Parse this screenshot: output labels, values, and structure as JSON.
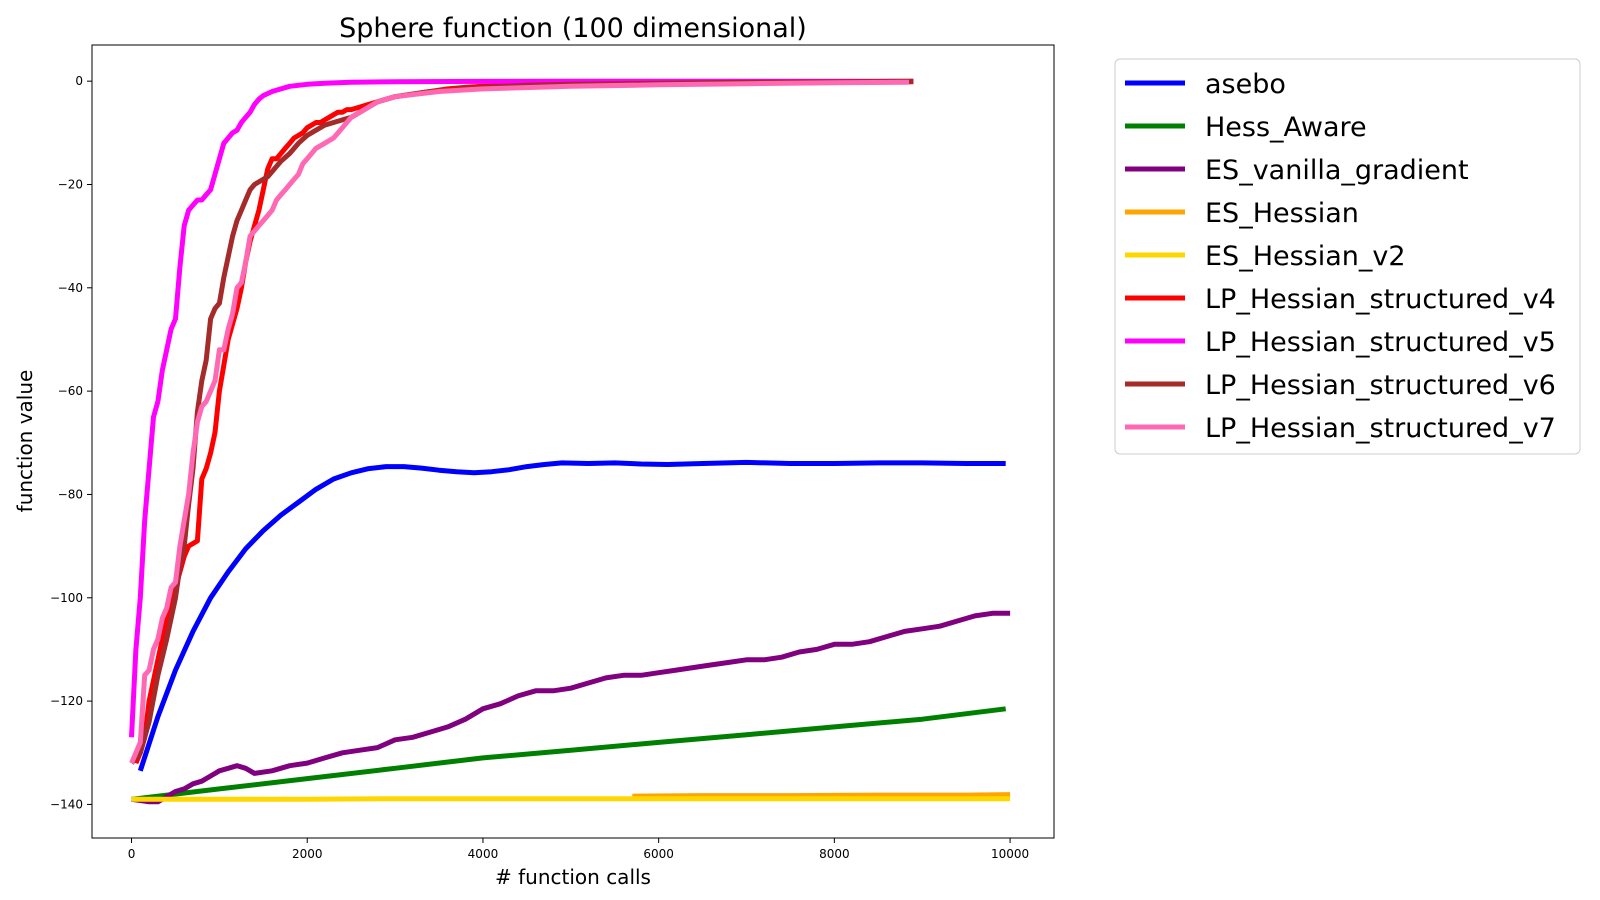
{
  "chart_data": {
    "type": "line",
    "title": "Sphere function (100 dimensional)",
    "xlabel": "# function calls",
    "ylabel": "function value",
    "xlim": [
      -450,
      10500
    ],
    "ylim": [
      -146.5,
      7
    ],
    "xticks": [
      0,
      2000,
      4000,
      6000,
      8000,
      10000
    ],
    "xtick_labels": [
      "0",
      "2000",
      "4000",
      "6000",
      "8000",
      "10000"
    ],
    "yticks": [
      0,
      -20,
      -40,
      -60,
      -80,
      -100,
      -120,
      -140
    ],
    "ytick_labels": [
      "0",
      "−20",
      "−40",
      "−60",
      "−80",
      "−100",
      "−120",
      "−140"
    ],
    "grid": false,
    "legend": "outside-upper-right",
    "series": [
      {
        "name": "asebo",
        "color": "#0000ff",
        "x": [
          100,
          300,
          500,
          700,
          900,
          1100,
          1300,
          1500,
          1700,
          1900,
          2100,
          2300,
          2500,
          2700,
          2900,
          3100,
          3300,
          3500,
          3700,
          3900,
          4100,
          4300,
          4500,
          4700,
          4900,
          5200,
          5500,
          5800,
          6100,
          6500,
          7000,
          7500,
          8000,
          8500,
          9000,
          9500,
          9950
        ],
        "y": [
          -133.5,
          -123,
          -114,
          -106.5,
          -100,
          -95,
          -90.5,
          -87,
          -84,
          -81.5,
          -79,
          -77,
          -75.8,
          -75,
          -74.6,
          -74.6,
          -74.9,
          -75.3,
          -75.6,
          -75.8,
          -75.6,
          -75.2,
          -74.6,
          -74.2,
          -73.9,
          -74,
          -73.9,
          -74.1,
          -74.2,
          -74,
          -73.8,
          -74,
          -74,
          -73.9,
          -73.9,
          -74,
          -74
        ]
      },
      {
        "name": "Hess_Aware",
        "color": "#008000",
        "x": [
          0,
          1000,
          2000,
          3000,
          4000,
          5000,
          6000,
          7000,
          8000,
          9000,
          9950
        ],
        "y": [
          -139,
          -137,
          -135,
          -133,
          -131,
          -129.5,
          -128,
          -126.5,
          -125,
          -123.5,
          -121.5
        ]
      },
      {
        "name": "ES_vanilla_gradient",
        "color": "#800080",
        "x": [
          0,
          200,
          300,
          400,
          500,
          600,
          700,
          800,
          900,
          1000,
          1100,
          1200,
          1300,
          1400,
          1600,
          1800,
          2000,
          2200,
          2400,
          2600,
          2800,
          3000,
          3200,
          3400,
          3600,
          3800,
          4000,
          4200,
          4400,
          4600,
          4800,
          5000,
          5200,
          5400,
          5600,
          5800,
          6000,
          6200,
          6400,
          6600,
          6800,
          7000,
          7200,
          7400,
          7600,
          7800,
          8000,
          8200,
          8400,
          8600,
          8800,
          9000,
          9200,
          9400,
          9600,
          9800,
          10000
        ],
        "y": [
          -139,
          -139.5,
          -139.5,
          -138.5,
          -137.5,
          -137,
          -136,
          -135.5,
          -134.5,
          -133.5,
          -133,
          -132.5,
          -133,
          -134,
          -133.5,
          -132.5,
          -132,
          -131,
          -130,
          -129.5,
          -129,
          -127.5,
          -127,
          -126,
          -125,
          -123.5,
          -121.5,
          -120.5,
          -119,
          -118,
          -118,
          -117.5,
          -116.5,
          -115.5,
          -115,
          -115,
          -114.5,
          -114,
          -113.5,
          -113,
          -112.5,
          -112,
          -112,
          -111.5,
          -110.5,
          -110,
          -109,
          -109,
          -108.5,
          -107.5,
          -106.5,
          -106,
          -105.5,
          -104.5,
          -103.5,
          -103,
          -103
        ]
      },
      {
        "name": "ES_Hessian",
        "color": "#ffa500",
        "x": [
          5700,
          6500,
          7500,
          8500,
          9500,
          10000
        ],
        "y": [
          -138.4,
          -138.3,
          -138.3,
          -138.2,
          -138.2,
          -138.1
        ]
      },
      {
        "name": "ES_Hessian_v2",
        "color": "#ffd700",
        "x": [
          0,
          1000,
          2000,
          3000,
          4000,
          5000,
          6000,
          7000,
          8000,
          9000,
          10000
        ],
        "y": [
          -139,
          -139,
          -139,
          -138.9,
          -138.9,
          -138.9,
          -138.9,
          -138.9,
          -138.9,
          -138.9,
          -138.9
        ]
      },
      {
        "name": "LP_Hessian_structured_v4",
        "color": "#ff0000",
        "x": [
          50,
          100,
          150,
          200,
          250,
          300,
          350,
          400,
          450,
          500,
          550,
          600,
          650,
          700,
          750,
          800,
          850,
          900,
          950,
          1000,
          1050,
          1100,
          1150,
          1200,
          1250,
          1300,
          1350,
          1400,
          1450,
          1500,
          1550,
          1600,
          1650,
          1700,
          1750,
          1800,
          1850,
          1900,
          1950,
          2000,
          2050,
          2100,
          2150,
          2200,
          2250,
          2300,
          2350,
          2400,
          2450,
          2500,
          2600,
          2700,
          2800,
          2900,
          3000,
          3200,
          3400,
          3600,
          3800,
          4000,
          5000,
          6000,
          7000,
          8000,
          8900
        ],
        "y": [
          -132,
          -130,
          -127,
          -120,
          -116,
          -112,
          -108,
          -104,
          -101,
          -98,
          -95,
          -92,
          -90,
          -89.5,
          -89,
          -77,
          -75,
          -72,
          -68,
          -60,
          -55,
          -50,
          -47,
          -44,
          -40,
          -35,
          -31,
          -28,
          -25,
          -21,
          -17,
          -15,
          -15,
          -14,
          -13,
          -12,
          -11,
          -10.5,
          -10,
          -9,
          -8.5,
          -8,
          -8,
          -7.5,
          -7,
          -6.5,
          -6,
          -6,
          -5.5,
          -5.5,
          -5,
          -4.5,
          -4,
          -3.5,
          -3,
          -2.5,
          -2,
          -1.5,
          -1.2,
          -1,
          -0.6,
          -0.4,
          -0.3,
          -0.2,
          -0.1
        ]
      },
      {
        "name": "LP_Hessian_structured_v5",
        "color": "#ff00ff",
        "x": [
          0,
          50,
          100,
          150,
          200,
          250,
          300,
          350,
          400,
          450,
          500,
          550,
          600,
          650,
          700,
          750,
          800,
          850,
          900,
          950,
          1000,
          1050,
          1100,
          1150,
          1200,
          1250,
          1300,
          1350,
          1400,
          1450,
          1500,
          1600,
          1700,
          1800,
          2000,
          2200,
          2500,
          3000,
          4000,
          5000,
          6000,
          8000,
          8900
        ],
        "y": [
          -127,
          -110,
          -100,
          -85,
          -75,
          -65,
          -62,
          -56,
          -52,
          -48,
          -46,
          -36,
          -28,
          -25,
          -24,
          -23,
          -23,
          -22,
          -21,
          -18,
          -15,
          -12,
          -11,
          -10,
          -9.5,
          -8,
          -7,
          -6,
          -4.5,
          -3.5,
          -2.8,
          -2,
          -1.5,
          -1,
          -0.6,
          -0.4,
          -0.2,
          -0.1,
          -0.05,
          0,
          0,
          0,
          0
        ]
      },
      {
        "name": "LP_Hessian_structured_v6",
        "color": "#a52a2a",
        "x": [
          0,
          100,
          200,
          300,
          400,
          500,
          550,
          600,
          650,
          700,
          750,
          800,
          850,
          900,
          950,
          1000,
          1050,
          1100,
          1150,
          1200,
          1250,
          1300,
          1350,
          1400,
          1450,
          1500,
          1550,
          1600,
          1650,
          1700,
          1800,
          1900,
          2000,
          2100,
          2200,
          2300,
          2400,
          2500,
          2600,
          2700,
          2800,
          2900,
          3000,
          3200,
          3400,
          3600,
          3800,
          4000,
          4500,
          5000,
          6000,
          7000,
          8000,
          8900
        ],
        "y": [
          -132,
          -130,
          -124,
          -115,
          -108,
          -100,
          -94,
          -90,
          -82,
          -75,
          -64,
          -58,
          -54,
          -46,
          -44,
          -43,
          -38,
          -34,
          -30,
          -27,
          -25,
          -23,
          -21,
          -20,
          -19.5,
          -19,
          -18.5,
          -17.5,
          -16.5,
          -15.5,
          -14,
          -12,
          -10.5,
          -9.5,
          -8.5,
          -8,
          -7.5,
          -7,
          -6,
          -5,
          -4,
          -3.5,
          -3,
          -2.5,
          -2,
          -1.8,
          -1.5,
          -1.2,
          -0.8,
          -0.6,
          -0.4,
          -0.2,
          -0.1,
          0
        ]
      },
      {
        "name": "LP_Hessian_structured_v7",
        "color": "#ff69b4",
        "x": [
          0,
          50,
          100,
          150,
          200,
          250,
          300,
          350,
          400,
          450,
          500,
          550,
          600,
          650,
          700,
          750,
          800,
          850,
          900,
          950,
          1000,
          1050,
          1100,
          1150,
          1200,
          1250,
          1300,
          1350,
          1400,
          1450,
          1500,
          1550,
          1600,
          1650,
          1700,
          1750,
          1800,
          1850,
          1900,
          1950,
          2000,
          2100,
          2200,
          2300,
          2400,
          2500,
          2600,
          2700,
          2800,
          2900,
          3000,
          3500,
          4000,
          5000,
          6000,
          7000,
          8000,
          8850
        ],
        "y": [
          -132,
          -130,
          -128,
          -115,
          -114,
          -110,
          -108,
          -104,
          -102,
          -98,
          -97,
          -90,
          -85,
          -80,
          -72,
          -66,
          -63,
          -62,
          -60,
          -58,
          -52,
          -52,
          -48,
          -45,
          -40,
          -39,
          -35,
          -30,
          -29,
          -28,
          -27,
          -26,
          -25,
          -23,
          -22,
          -21,
          -20,
          -19,
          -18,
          -16,
          -15,
          -13,
          -12,
          -11,
          -9,
          -7,
          -6,
          -5,
          -4,
          -3.5,
          -3,
          -2,
          -1.5,
          -1,
          -0.7,
          -0.5,
          -0.3,
          -0.2
        ]
      }
    ]
  }
}
